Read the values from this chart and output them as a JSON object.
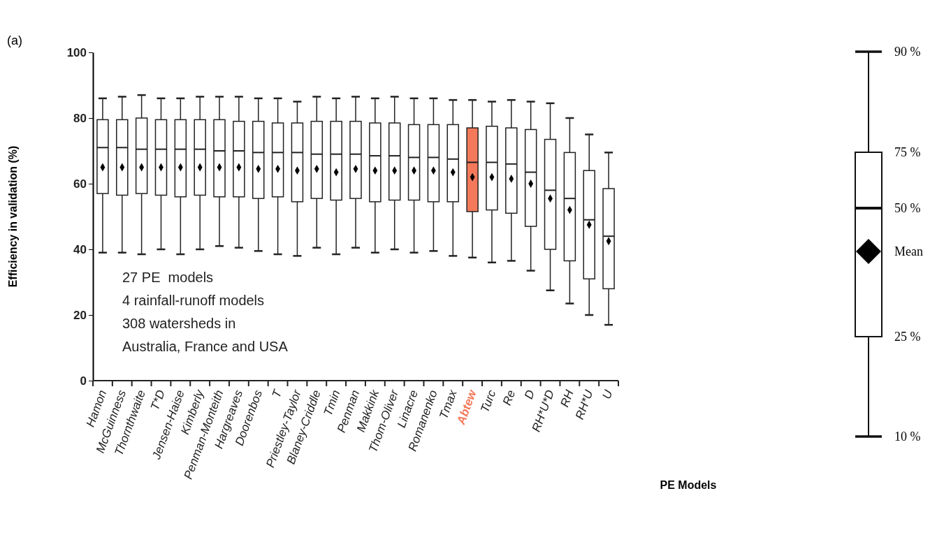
{
  "chart_data": {
    "type": "box",
    "ylabel": "Efficiency in validation (%)",
    "xlabel": "PE Models",
    "categories": [
      "Hamon",
      "McGuinness",
      "Thornthwaite",
      "T*D",
      "Jensen-Haise",
      "Kimberly",
      "Penman-Monteith",
      "Hargreaves",
      "Doorenbos",
      "T",
      "Priestley-Taylor",
      "Blaney-Criddle",
      "Tmin",
      "Penman",
      "Makkink",
      "Thom-Oliver",
      "Linacre",
      "Romanenko",
      "Tmax",
      "Abtew",
      "Turc",
      "Re",
      "D",
      "RH*U*D",
      "RH",
      "RH*U",
      "U"
    ],
    "boxes": [
      {
        "low": 39,
        "q1": 57,
        "median": 71,
        "q3": 79.5,
        "high": 86,
        "mean": 65
      },
      {
        "low": 39,
        "q1": 56.5,
        "median": 71,
        "q3": 79.5,
        "high": 86.5,
        "mean": 65
      },
      {
        "low": 38.5,
        "q1": 57,
        "median": 70.5,
        "q3": 80,
        "high": 87,
        "mean": 65
      },
      {
        "low": 40,
        "q1": 56.5,
        "median": 70.5,
        "q3": 79.5,
        "high": 86,
        "mean": 65
      },
      {
        "low": 38.5,
        "q1": 56,
        "median": 70.5,
        "q3": 79.5,
        "high": 86,
        "mean": 65
      },
      {
        "low": 40,
        "q1": 56.5,
        "median": 70.5,
        "q3": 79.5,
        "high": 86.5,
        "mean": 65
      },
      {
        "low": 41,
        "q1": 56,
        "median": 70,
        "q3": 79.5,
        "high": 86.5,
        "mean": 65
      },
      {
        "low": 40.5,
        "q1": 56,
        "median": 70,
        "q3": 79,
        "high": 86.5,
        "mean": 65
      },
      {
        "low": 39.5,
        "q1": 55.5,
        "median": 69.5,
        "q3": 79,
        "high": 86,
        "mean": 64.5
      },
      {
        "low": 38.5,
        "q1": 56,
        "median": 69.5,
        "q3": 78.5,
        "high": 86,
        "mean": 64.5
      },
      {
        "low": 38,
        "q1": 54.5,
        "median": 69.5,
        "q3": 78.5,
        "high": 85,
        "mean": 64
      },
      {
        "low": 40.5,
        "q1": 55.5,
        "median": 69,
        "q3": 79,
        "high": 86.5,
        "mean": 64.5
      },
      {
        "low": 38.5,
        "q1": 55,
        "median": 69,
        "q3": 79,
        "high": 86,
        "mean": 63.5
      },
      {
        "low": 40.5,
        "q1": 55.5,
        "median": 69,
        "q3": 79,
        "high": 86.5,
        "mean": 64.5
      },
      {
        "low": 39,
        "q1": 54.5,
        "median": 68.5,
        "q3": 78.5,
        "high": 86,
        "mean": 64
      },
      {
        "low": 40,
        "q1": 55,
        "median": 68.5,
        "q3": 78.5,
        "high": 86.5,
        "mean": 64
      },
      {
        "low": 39,
        "q1": 55,
        "median": 68,
        "q3": 78,
        "high": 86,
        "mean": 64
      },
      {
        "low": 39.5,
        "q1": 54.5,
        "median": 68,
        "q3": 78,
        "high": 86,
        "mean": 64
      },
      {
        "low": 38,
        "q1": 54.5,
        "median": 67.5,
        "q3": 78,
        "high": 85.5,
        "mean": 63.5
      },
      {
        "low": 37.5,
        "q1": 51.5,
        "median": 66.5,
        "q3": 77,
        "high": 85.5,
        "mean": 62
      },
      {
        "low": 36,
        "q1": 52,
        "median": 66.5,
        "q3": 77.5,
        "high": 85,
        "mean": 62
      },
      {
        "low": 36.5,
        "q1": 51,
        "median": 66,
        "q3": 77,
        "high": 85.5,
        "mean": 61.5
      },
      {
        "low": 33.5,
        "q1": 47,
        "median": 63.5,
        "q3": 76.5,
        "high": 85,
        "mean": 60
      },
      {
        "low": 27.5,
        "q1": 40,
        "median": 58,
        "q3": 73.5,
        "high": 84.5,
        "mean": 55.5
      },
      {
        "low": 23.5,
        "q1": 36.5,
        "median": 55.5,
        "q3": 69.5,
        "high": 80,
        "mean": 52
      },
      {
        "low": 20,
        "q1": 31,
        "median": 49,
        "q3": 64,
        "high": 75,
        "mean": 47.5
      },
      {
        "low": 17,
        "q1": 28,
        "median": 44,
        "q3": 58.5,
        "high": 69.5,
        "mean": 42.5
      }
    ],
    "colors": [
      "#ffffff",
      "#ffffff",
      "#ffffff",
      "#ffffff",
      "#ffffff",
      "#ffffff",
      "#ffffff",
      "#ffffff",
      "#ffffff",
      "#ffffff",
      "#ffffff",
      "#ffffff",
      "#ffffff",
      "#ffffff",
      "#ffffff",
      "#ffffff",
      "#ffffff",
      "#ffffff",
      "#ffffff",
      "#f4795a",
      "#ffffff",
      "#ffffff",
      "#ffffff",
      "#ffffff",
      "#ffffff",
      "#ffffff",
      "#ffffff"
    ],
    "marker": "diamond",
    "ylim": [
      0,
      100
    ],
    "yticks": [
      0,
      20,
      40,
      60,
      80,
      100
    ],
    "annotations": [
      "(a)",
      "27 PE  models",
      "4 rainfall-runoff models",
      "308 watersheds in",
      "Australia, France and USA",
      "90 %",
      "75 %",
      "50 %",
      "Mean",
      "25 %",
      "10 %"
    ]
  }
}
